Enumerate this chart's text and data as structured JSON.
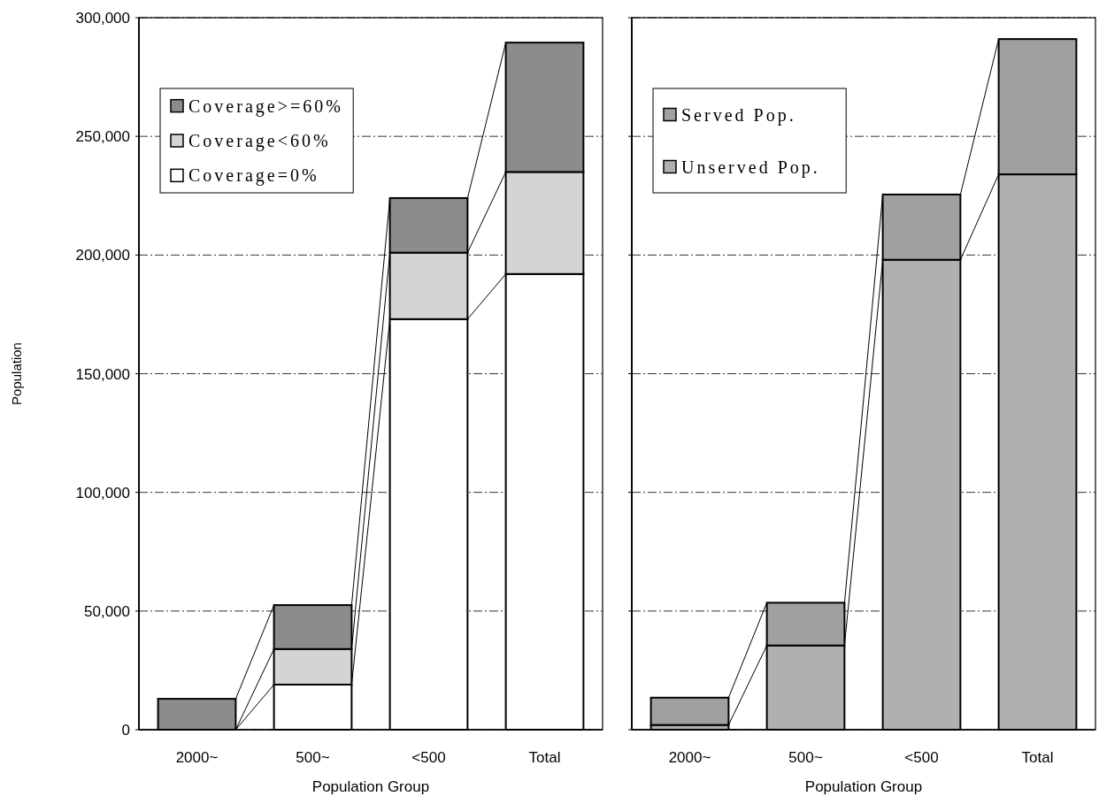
{
  "chart_data": [
    {
      "type": "bar",
      "stacked": true,
      "xlabel": "Population Group",
      "ylabel": "Population",
      "categories": [
        "2000~",
        "500~",
        "<500",
        "Total"
      ],
      "ylim": [
        0,
        300000
      ],
      "yticks": [
        0,
        {
          "value": 50000,
          "label": "50,000"
        },
        {
          "value": 100000,
          "label": "100,000"
        },
        {
          "value": 150000,
          "label": "150,000"
        },
        {
          "value": 200000,
          "label": "200,000"
        },
        {
          "value": 250000,
          "label": "250,000"
        },
        {
          "value": 300000,
          "label": "300,000"
        }
      ],
      "grid": "y",
      "legend": "top left",
      "series": [
        {
          "name": "Coverage=0%",
          "color": "#ffffff",
          "values": [
            0,
            19000,
            173000,
            192000
          ]
        },
        {
          "name": "Coverage<60%",
          "color": "#d4d4d4",
          "values": [
            0,
            15000,
            28000,
            43000
          ]
        },
        {
          "name": "Coverage>=60%",
          "color": "#8c8c8c",
          "values": [
            13000,
            18500,
            23000,
            54500
          ]
        }
      ]
    },
    {
      "type": "bar",
      "stacked": true,
      "xlabel": "Population Group",
      "categories": [
        "2000~",
        "500~",
        "<500",
        "Total"
      ],
      "ylim": [
        0,
        300000
      ],
      "yticks": [
        {
          "value": 0,
          "label": null
        },
        {
          "value": 50000,
          "label": null
        },
        {
          "value": 100000,
          "label": null
        },
        {
          "value": 150000,
          "label": null
        },
        {
          "value": 200000,
          "label": null
        },
        {
          "value": 250000,
          "label": null
        },
        {
          "value": 300000,
          "label": null
        }
      ],
      "tick_labels": "x",
      "grid": "y",
      "legend": "top left",
      "series": [
        {
          "name": "Unserved Pop.",
          "color": "#b0b0b0",
          "values": [
            2000,
            35500,
            198000,
            234000
          ]
        },
        {
          "name": "Served Pop.",
          "color": "#a0a0a0",
          "values": [
            11500,
            18000,
            27500,
            57000
          ]
        }
      ]
    }
  ]
}
